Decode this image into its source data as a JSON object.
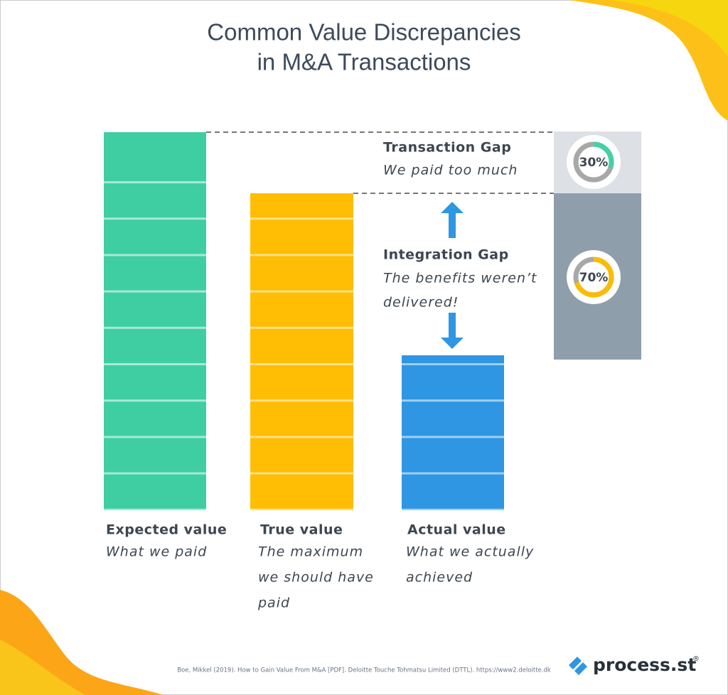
{
  "header": {
    "title_lines": [
      "Common Value Discrepancies",
      "in M&A Transactions"
    ]
  },
  "bars": [
    {
      "label": "Expected value",
      "description_lines": [
        "What we paid"
      ]
    },
    {
      "label": "True value",
      "description_lines": [
        "The maximum",
        "we should have",
        "paid"
      ]
    },
    {
      "label": "Actual value",
      "description_lines": [
        "What we actually",
        "achieved"
      ]
    }
  ],
  "gaps": [
    {
      "title": "Transaction Gap",
      "description_lines": [
        "We paid too much"
      ],
      "share": {
        "value": 30,
        "label": "30%"
      }
    },
    {
      "title": "Integration Gap",
      "description_lines": [
        "The benefits weren’t",
        "delivered!"
      ],
      "share": {
        "value": 70,
        "label": "70%"
      }
    }
  ],
  "footer": {
    "source": "Boe, Mikkel (2019). How to Gain Value From M&A [PDF]. Deloitte Touche Tohmatsu Limited (DTTL). https://www2.deloitte.dk",
    "logo": "process.st",
    "logo_mark": "®"
  }
}
